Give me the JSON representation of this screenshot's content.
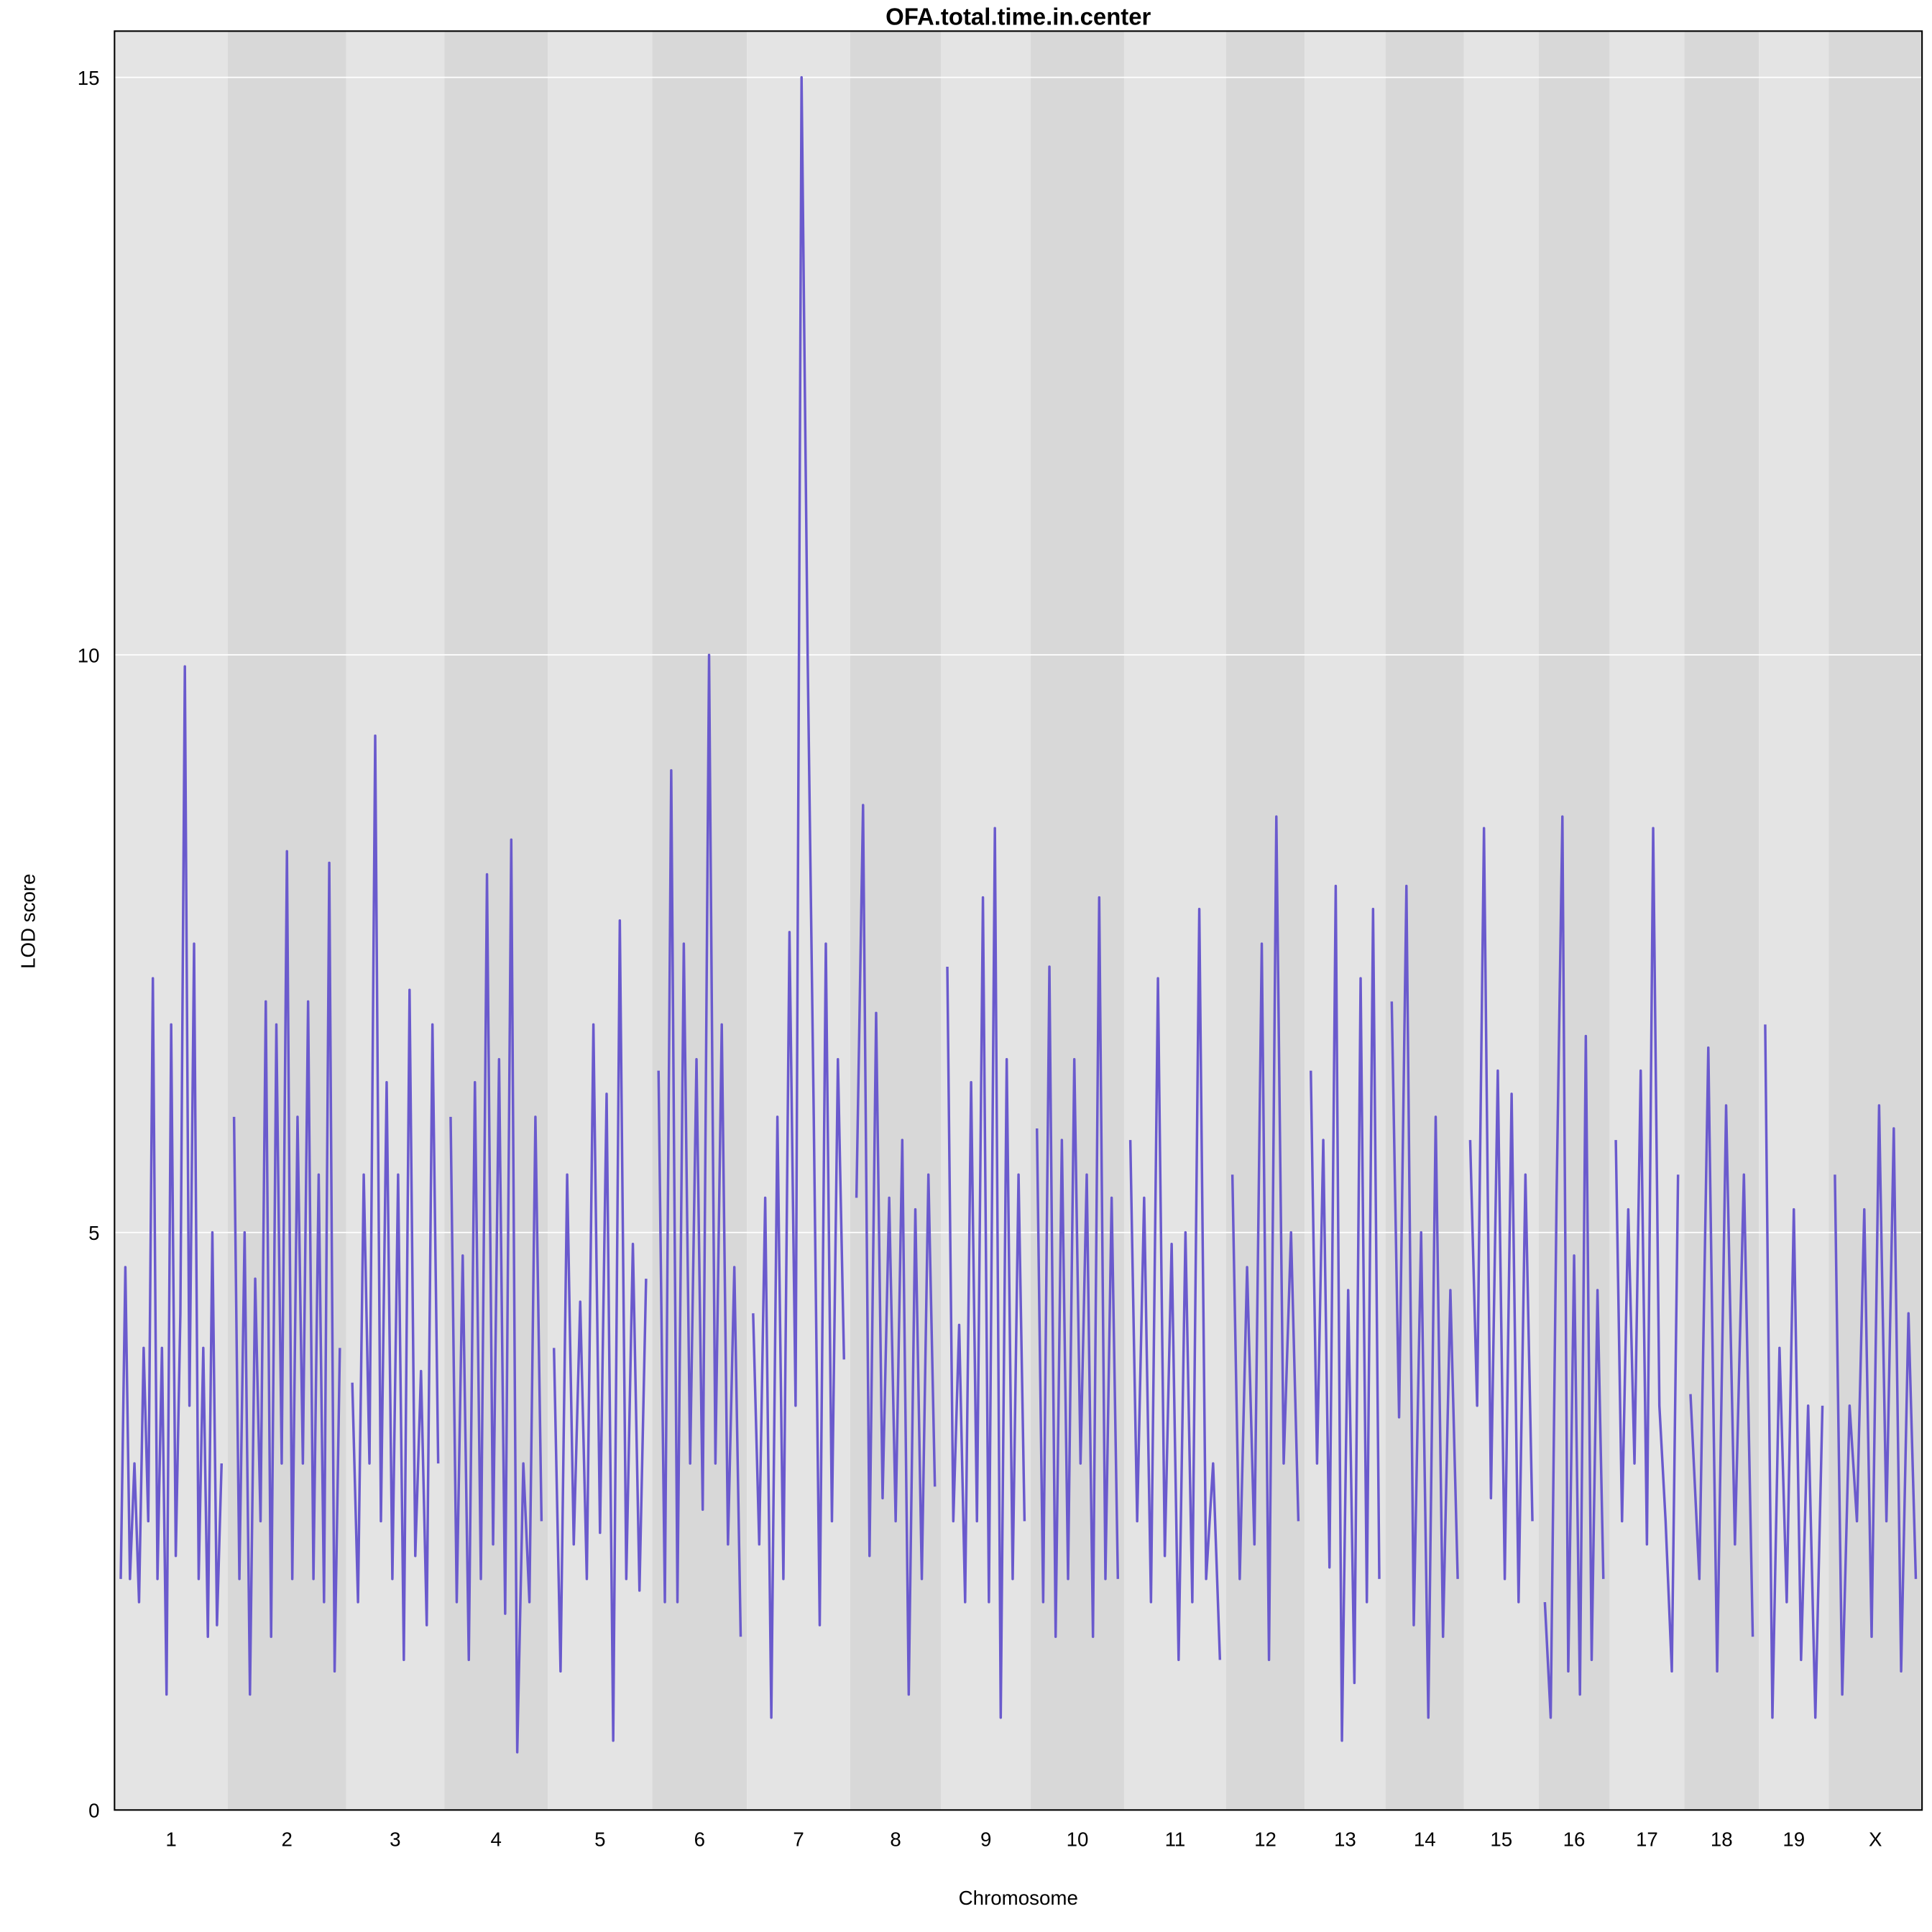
{
  "chart_data": {
    "type": "line",
    "title": "OFA.total.time.in.center",
    "xlabel": "Chromosome",
    "ylabel": "LOD score",
    "ylim": [
      0,
      15.4
    ],
    "yticks": [
      0,
      5,
      10,
      15
    ],
    "grid": true,
    "line_color": "#6a5acd",
    "band_colors": [
      "#e4e4e4",
      "#d8d8d8"
    ],
    "chromosomes": [
      {
        "label": "1",
        "lod": [
          2,
          4.7,
          2,
          3,
          1.8,
          4,
          2.5,
          7.2,
          2,
          4,
          1,
          6.8,
          2.2,
          4.3,
          9.9,
          3.5,
          7.5,
          2,
          4,
          1.5,
          5,
          1.6,
          3
        ]
      },
      {
        "label": "2",
        "lod": [
          6,
          2,
          5,
          1,
          4.6,
          2.5,
          7,
          1.5,
          6.8,
          3,
          8.3,
          2,
          6,
          3,
          7,
          2,
          5.5,
          1.8,
          8.2,
          1.2,
          4
        ]
      },
      {
        "label": "3",
        "lod": [
          3.7,
          1.8,
          5.5,
          3,
          9.3,
          2.5,
          6.3,
          2,
          5.5,
          1.3,
          7.1,
          2.2,
          3.8,
          1.6,
          6.8,
          3
        ]
      },
      {
        "label": "4",
        "lod": [
          6,
          1.8,
          4.8,
          1.3,
          6.3,
          2,
          8.1,
          2.3,
          6.5,
          1.7,
          8.4,
          0.5,
          3,
          1.8,
          6,
          2.5
        ]
      },
      {
        "label": "5",
        "lod": [
          4,
          1.2,
          5.5,
          2.3,
          4.4,
          2,
          6.8,
          2.4,
          6.2,
          0.6,
          7.7,
          2,
          4.9,
          1.9,
          4.6
        ]
      },
      {
        "label": "6",
        "lod": [
          6.4,
          1.8,
          9.0,
          1.8,
          7.5,
          3,
          6.5,
          2.6,
          10,
          3,
          6.8,
          2.3,
          4.7,
          1.5
        ]
      },
      {
        "label": "7",
        "lod": [
          4.3,
          2.3,
          5.3,
          0.8,
          6,
          2,
          7.6,
          3.5,
          15,
          10,
          6,
          1.6,
          7.5,
          2.5,
          6.5,
          3.9
        ]
      },
      {
        "label": "8",
        "lod": [
          5.3,
          8.7,
          2.2,
          6.9,
          2.7,
          5.3,
          2.5,
          5.8,
          1,
          5.2,
          2,
          5.5,
          2.8
        ]
      },
      {
        "label": "9",
        "lod": [
          7.3,
          2.5,
          4.2,
          1.8,
          6.3,
          2.5,
          7.9,
          1.8,
          8.5,
          0.8,
          6.5,
          2,
          5.5,
          2.5
        ]
      },
      {
        "label": "10",
        "lod": [
          5.9,
          1.8,
          7.3,
          1.5,
          5.8,
          2,
          6.5,
          3,
          5.5,
          1.5,
          7.9,
          2,
          5.3,
          2
        ]
      },
      {
        "label": "11",
        "lod": [
          5.8,
          2.5,
          5.3,
          1.8,
          7.2,
          2.2,
          4.9,
          1.3,
          5,
          1.8,
          7.8,
          2,
          3,
          1.3
        ]
      },
      {
        "label": "12",
        "lod": [
          5.5,
          2,
          4.7,
          2.3,
          7.5,
          1.3,
          8.6,
          3,
          5,
          2.5
        ]
      },
      {
        "label": "13",
        "lod": [
          6.4,
          3,
          5.8,
          2.1,
          8,
          0.6,
          4.5,
          1.1,
          7.2,
          1.8,
          7.8,
          2
        ]
      },
      {
        "label": "14",
        "lod": [
          7,
          3.4,
          8,
          1.6,
          5,
          0.8,
          6,
          1.5,
          4.5,
          2
        ]
      },
      {
        "label": "15",
        "lod": [
          5.8,
          3.5,
          8.5,
          2.7,
          6.4,
          2,
          6.2,
          1.8,
          5.5,
          2.5
        ]
      },
      {
        "label": "16",
        "lod": [
          1.8,
          0.8,
          5.3,
          8.6,
          1.2,
          4.8,
          1,
          6.7,
          1.3,
          4.5,
          2
        ]
      },
      {
        "label": "17",
        "lod": [
          5.8,
          2.5,
          5.2,
          3,
          6.4,
          2.3,
          8.5,
          3.5,
          2.5,
          1.2,
          5.5
        ]
      },
      {
        "label": "18",
        "lod": [
          3.6,
          2,
          6.6,
          1.2,
          6.1,
          2.3,
          5.5,
          1.5
        ]
      },
      {
        "label": "19",
        "lod": [
          6.8,
          0.8,
          4,
          1.8,
          5.2,
          1.3,
          3.5,
          0.8,
          3.5
        ]
      },
      {
        "label": "X",
        "lod": [
          5.5,
          1,
          3.5,
          2.5,
          5.2,
          1.5,
          6.1,
          2.5,
          5.9,
          1.2,
          4.3,
          2
        ]
      }
    ]
  }
}
